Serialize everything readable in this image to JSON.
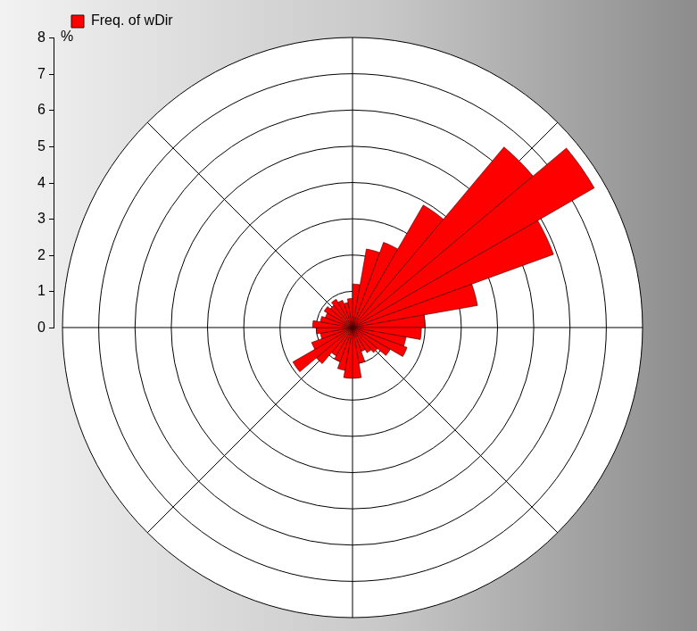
{
  "chart_data": {
    "type": "polarArea",
    "ylabel": "%",
    "x": [
      0,
      10,
      20,
      30,
      40,
      50,
      60,
      70,
      80,
      90,
      100,
      110,
      120,
      130,
      140,
      150,
      160,
      170,
      180,
      190,
      200,
      210,
      220,
      230,
      240,
      250,
      260,
      270,
      280,
      290,
      300,
      310,
      320,
      330,
      340,
      350
    ],
    "series": [
      {
        "name": "Freq. of wDir",
        "color": "#ff0000",
        "values": [
          1.2,
          2.2,
          2.5,
          3.9,
          6.5,
          7.7,
          5.9,
          3.5,
          2.0,
          1.9,
          1.5,
          1.6,
          1.2,
          0.9,
          0.8,
          0.7,
          1.0,
          1.4,
          1.4,
          1.2,
          1.0,
          0.9,
          1.3,
          1.9,
          1.2,
          0.9,
          1.0,
          1.1,
          0.9,
          0.8,
          0.9,
          0.8,
          0.9,
          0.8,
          0.7,
          0.8
        ]
      }
    ],
    "ylim": [
      0,
      8
    ],
    "yticks": [
      0,
      1,
      2,
      3,
      4,
      5,
      6,
      7,
      8
    ],
    "grid": true,
    "legend": "top left"
  }
}
